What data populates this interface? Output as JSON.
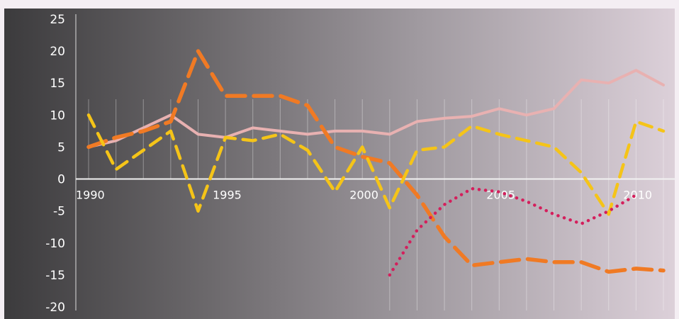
{
  "chart_data": {
    "type": "line",
    "title": "",
    "xlabel": "",
    "ylabel": "",
    "xlim": [
      1990,
      2011
    ],
    "ylim": [
      -20,
      25
    ],
    "x_ticks": [
      1990,
      1995,
      2000,
      2005,
      2010
    ],
    "y_ticks": [
      25,
      20,
      15,
      10,
      5,
      0,
      -5,
      -10,
      -15,
      -20
    ],
    "grid": "vertical lines at each year",
    "legend": "none",
    "x": [
      1990,
      1991,
      1992,
      1993,
      1994,
      1995,
      1996,
      1997,
      1998,
      1999,
      2000,
      2001,
      2002,
      2003,
      2004,
      2005,
      2006,
      2007,
      2008,
      2009,
      2010,
      2011
    ],
    "series": [
      {
        "color": "#e8b1b1",
        "style": "solid",
        "values": [
          5,
          6,
          8,
          10,
          7,
          6.5,
          8,
          7.5,
          7,
          7.5,
          7.5,
          7,
          9,
          9.5,
          9.8,
          11,
          10,
          11,
          15.5,
          15,
          17,
          14.7
        ]
      },
      {
        "color": "#f07a24",
        "style": "long-dash",
        "values": [
          5,
          6.5,
          7.5,
          9,
          20,
          13,
          13,
          13,
          11.5,
          5,
          3.5,
          2.5,
          -2.5,
          -9,
          -13.5,
          -13,
          -12.5,
          -13,
          -13,
          -14.5,
          -14,
          -14.3
        ]
      },
      {
        "color": "#f5c418",
        "style": "dash",
        "values": [
          10,
          1.5,
          4.5,
          7.5,
          -5,
          6.5,
          6,
          7,
          4.5,
          -2,
          5,
          -4.5,
          4.5,
          5,
          8.3,
          7,
          6,
          5,
          1,
          -5.5,
          9,
          7.5
        ]
      },
      {
        "color": "#d41f5c",
        "style": "dotted",
        "values": [
          null,
          null,
          null,
          null,
          null,
          null,
          null,
          null,
          null,
          null,
          null,
          -15,
          -8,
          -4,
          -1.5,
          -2,
          -3.5,
          -5.5,
          -7,
          -5,
          -2.5,
          null
        ]
      }
    ]
  }
}
